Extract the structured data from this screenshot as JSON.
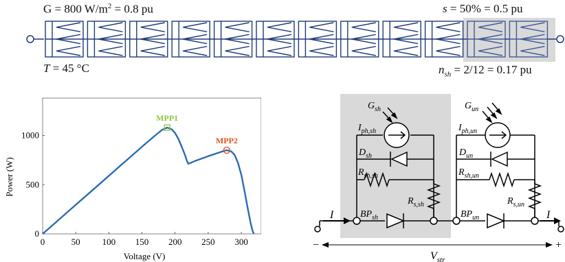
{
  "array": {
    "irradiance_text": "G = 800 W/m",
    "irradiance_sup": "2",
    "irradiance_pu": " = 0.8 pu",
    "temp_sym": "T",
    "temp_val": " = 45 °C",
    "shade_sym": "s",
    "shade_val": " = 50% = 0.5 pu",
    "nsh_sym": "n",
    "nsh_sub": "sh",
    "nsh_val": " = 2/12 = 0.17 pu",
    "module_count": 12,
    "shaded_count": 2,
    "module_color": "#1e3a78",
    "shade_color": "#d9d9d9"
  },
  "chart_data": {
    "type": "line",
    "xlabel": "Voltage (V)",
    "ylabel": "Power (W)",
    "xlim": [
      0,
      330
    ],
    "ylim": [
      0,
      1380
    ],
    "xticks": [
      0,
      50,
      100,
      150,
      200,
      250,
      300
    ],
    "yticks": [
      0,
      500,
      1000
    ],
    "series": [
      {
        "color": "#2b6cb0",
        "x": [
          0,
          20,
          40,
          60,
          80,
          100,
          120,
          140,
          150,
          160,
          170,
          180,
          188,
          195,
          200,
          205,
          210,
          215,
          218,
          220,
          230,
          240,
          250,
          260,
          270,
          278,
          285,
          290,
          295,
          300,
          305,
          310,
          314,
          317,
          319
        ],
        "y": [
          0,
          118,
          236,
          354,
          472,
          590,
          708,
          826,
          885,
          944,
          1000,
          1055,
          1080,
          1062,
          1025,
          965,
          885,
          800,
          738,
          712,
          740,
          765,
          790,
          812,
          835,
          850,
          838,
          800,
          720,
          600,
          430,
          250,
          110,
          30,
          0
        ]
      }
    ],
    "annotations": [
      {
        "label": "MPP1",
        "x": 188,
        "y": 1080,
        "marker": "square",
        "color": "#8dc63f"
      },
      {
        "label": "MPP2",
        "x": 278,
        "y": 850,
        "marker": "circle",
        "color": "#e0521f"
      }
    ]
  },
  "circuit": {
    "g_sh": "G",
    "g_sh_sub": "sh",
    "iph_sh": "I",
    "iph_sh_sub": "ph,sh",
    "d_sh": "D",
    "d_sh_sub": "sh",
    "rsh_sh": "R",
    "rsh_sh_sub": "sh,sh",
    "rs_sh": "R",
    "rs_sh_sub": "s,sh",
    "bp_sh": "BP",
    "bp_sh_sub": "sh",
    "g_un": "G",
    "g_un_sub": "un",
    "iph_un": "I",
    "iph_un_sub": "ph,un",
    "d_un": "D",
    "d_un_sub": "un",
    "rsh_un": "R",
    "rsh_un_sub": "sh,un",
    "rs_un": "R",
    "rs_un_sub": "s,un",
    "bp_un": "BP",
    "bp_un_sub": "un",
    "current_in": "I",
    "current_out": "I",
    "minus": "−",
    "plus": "+",
    "vstr": "V",
    "vstr_sub": "str"
  }
}
